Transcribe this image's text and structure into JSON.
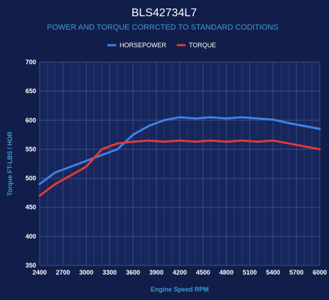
{
  "chart_data": {
    "type": "line",
    "title": "BLS42734L7",
    "subtitle": "POWER AND TORQUE CORRCTED TO STANDARD CODITIONS",
    "xlabel": "Engine Speed RPM",
    "ylabel": "Torque FT-LBS / HOR",
    "xlim": [
      2400,
      6000
    ],
    "ylim": [
      350,
      700
    ],
    "x_ticks": [
      2400,
      2700,
      3000,
      3300,
      3600,
      3900,
      4200,
      4500,
      4800,
      5100,
      5400,
      5700,
      6000
    ],
    "y_ticks": [
      350,
      400,
      450,
      500,
      550,
      600,
      650,
      700
    ],
    "grid": true,
    "legend_position": "top-center",
    "x": [
      2400,
      2600,
      2800,
      3000,
      3200,
      3400,
      3600,
      3800,
      4000,
      4200,
      4400,
      4600,
      4800,
      5000,
      5200,
      5400,
      5600,
      5800,
      6000
    ],
    "series": [
      {
        "name": "HORSEPOWER",
        "color": "#3f80e6",
        "values": [
          490,
          510,
          520,
          530,
          540,
          550,
          575,
          590,
          600,
          605,
          603,
          605,
          603,
          605,
          603,
          601,
          595,
          590,
          585
        ]
      },
      {
        "name": "TORQUE",
        "color": "#e0393b",
        "values": [
          470,
          490,
          505,
          520,
          550,
          560,
          563,
          565,
          563,
          565,
          563,
          565,
          563,
          565,
          563,
          565,
          560,
          555,
          550
        ]
      }
    ]
  }
}
